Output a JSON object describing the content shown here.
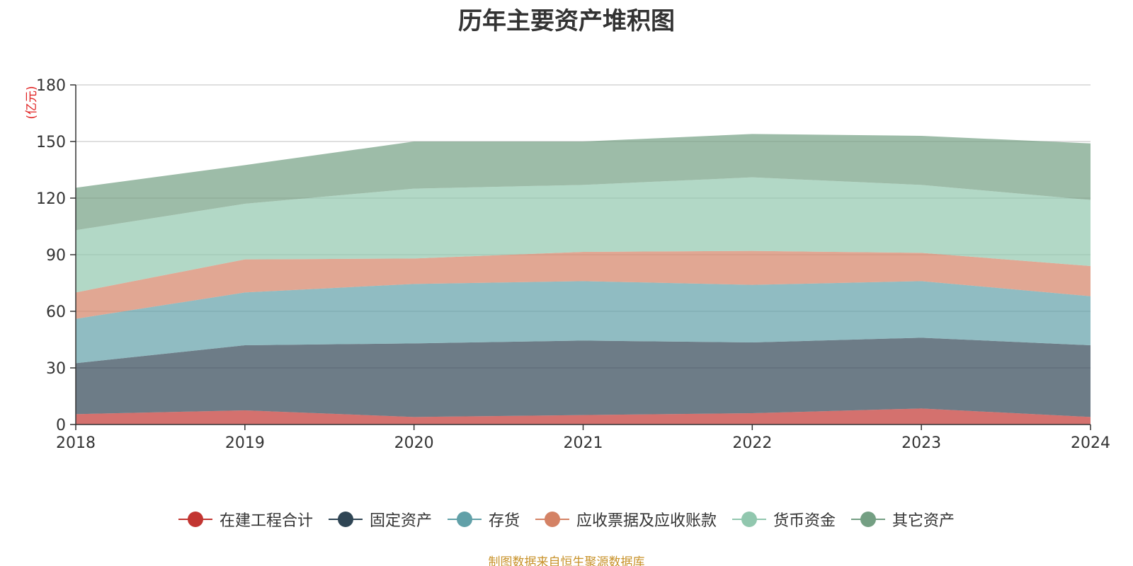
{
  "title": "历年主要资产堆积图",
  "source": "制图数据来自恒生聚源数据库",
  "chart_data": {
    "type": "area",
    "stacked": true,
    "title": "历年主要资产堆积图",
    "ylabel": "(亿元)",
    "x": [
      "2018",
      "2019",
      "2020",
      "2021",
      "2022",
      "2023",
      "2024"
    ],
    "ylim": [
      0,
      180
    ],
    "yticks": [
      "0",
      "30",
      "60",
      "90",
      "120",
      "150",
      "180"
    ],
    "grid": true,
    "legend_position": "bottom",
    "series": [
      {
        "name": "在建工程合计",
        "color": "#c23531",
        "values": [
          5.5,
          7.5,
          4,
          5,
          6,
          8.5,
          4
        ]
      },
      {
        "name": "固定资产",
        "color": "#2f4554",
        "values": [
          27,
          34.5,
          39,
          39.5,
          37.5,
          37.5,
          38
        ]
      },
      {
        "name": "存货",
        "color": "#61a0a8",
        "values": [
          23.5,
          28,
          31.5,
          31.5,
          30.5,
          30,
          26
        ]
      },
      {
        "name": "应收票据及应收账款",
        "color": "#d48265",
        "values": [
          14,
          17.5,
          13.5,
          15.5,
          18,
          15,
          16
        ]
      },
      {
        "name": "货币资金",
        "color": "#91c7ae",
        "values": [
          33,
          29.5,
          37,
          35.5,
          39,
          36,
          35
        ]
      },
      {
        "name": "其它资产",
        "color": "#749f83",
        "values": [
          22.5,
          20.5,
          25,
          23,
          23,
          26,
          30
        ]
      }
    ]
  }
}
